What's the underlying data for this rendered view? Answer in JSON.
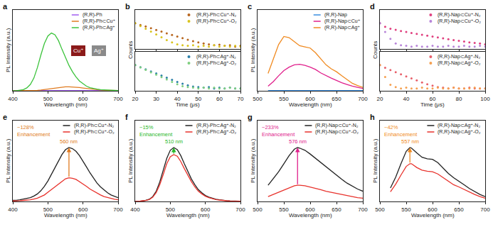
{
  "chart_data": [
    {
      "type": "line",
      "title": "a",
      "x_label": "Wavelength (nm)",
      "y_label": "PL Intensity (a.u.)",
      "xlim": [
        400,
        700
      ],
      "xticks": [
        400,
        500,
        600,
        700
      ],
      "ylim": [
        0,
        1.4
      ],
      "tick_labels": "x",
      "legend": "upper right",
      "x": [
        400,
        410,
        420,
        430,
        440,
        450,
        460,
        470,
        480,
        490,
        500,
        510,
        520,
        530,
        540,
        550,
        560,
        570,
        580,
        590,
        600,
        610,
        620,
        630,
        640,
        650,
        660,
        670,
        680,
        690,
        700
      ],
      "series": [
        {
          "name": "(R,R)-Ph",
          "color": "#a15cf0",
          "values": [
            0.003,
            0.003,
            0.003,
            0.003,
            0.003,
            0.003,
            0.003,
            0.003,
            0.003,
            0.003,
            0.003,
            0.003,
            0.003,
            0.003,
            0.003,
            0.003,
            0.003,
            0.003,
            0.003,
            0.003,
            0.003,
            0.003,
            0.003,
            0.003,
            0.003,
            0.003,
            0.003,
            0.003,
            0.003,
            0.003,
            0.003
          ]
        },
        {
          "name": "(R,R)-Ph⊂Cu⁺",
          "color": "#e07b20",
          "values": [
            0,
            0,
            0,
            0.001,
            0.001,
            0.002,
            0.004,
            0.008,
            0.014,
            0.022,
            0.03,
            0.04,
            0.05,
            0.058,
            0.065,
            0.069,
            0.07,
            0.068,
            0.063,
            0.056,
            0.048,
            0.04,
            0.032,
            0.025,
            0.019,
            0.014,
            0.01,
            0.007,
            0.005,
            0.004,
            0.003
          ]
        },
        {
          "name": "(R,R)-Ph⊂Ag⁺",
          "color": "#3cc33c",
          "values": [
            0,
            0,
            0.01,
            0.02,
            0.05,
            0.11,
            0.22,
            0.4,
            0.62,
            0.82,
            0.95,
            1.0,
            0.97,
            0.87,
            0.72,
            0.57,
            0.44,
            0.33,
            0.24,
            0.17,
            0.12,
            0.08,
            0.055,
            0.04,
            0.03,
            0.02,
            0.015,
            0.01,
            0.008,
            0.005,
            0.004
          ]
        }
      ],
      "annotations": [
        {
          "text": "Cu⁺",
          "color": "#8b1a1a"
        },
        {
          "text": "Ag⁺",
          "color": "#8a8a8a"
        }
      ]
    },
    {
      "type": "scatter",
      "title": "b",
      "x_label": "Time (μs)",
      "y_label": "Counts",
      "log": "y",
      "marker": "circle",
      "xlim": [
        20,
        70
      ],
      "xticks": [
        20,
        30,
        40,
        50,
        60,
        70
      ],
      "ylim": [
        1,
        100000
      ],
      "legend": "upper right",
      "x": [
        20,
        22.5,
        25,
        27.5,
        30,
        32.5,
        35,
        37.5,
        40,
        42.5,
        45,
        47.5,
        50,
        52.5,
        55,
        57.5,
        60,
        62.5,
        65,
        67.5,
        70
      ],
      "panels": [
        {
          "tick_labels": false,
          "series": [
            {
              "name": "(R,R)-Ph⊂Cu⁺-N₂",
              "color": "#b8661e",
              "values": [
                2000,
                1200,
                750,
                450,
                270,
                165,
                100,
                62,
                38,
                24,
                15,
                10,
                7,
                5,
                4,
                3,
                3.5,
                2.5,
                3,
                2,
                2.5
              ]
            },
            {
              "name": "(R,R)-Ph⊂Cu⁺-O₂",
              "color": "#d9c41e",
              "values": [
                2000,
                870,
                380,
                165,
                72,
                32,
                14,
                7,
                4,
                3,
                2.5,
                3,
                2,
                2.5,
                2,
                3,
                2,
                2.5,
                2,
                2.5,
                2
              ]
            }
          ]
        },
        {
          "tick_labels": "x",
          "series": [
            {
              "name": "(R,R)-Ph⊂Ag⁺-N₂",
              "color": "#2a7fa8",
              "values": [
                2000,
                1070,
                570,
                305,
                165,
                88,
                47,
                26,
                14,
                8,
                5,
                3.5,
                3,
                2.5,
                3,
                2,
                2.5,
                2,
                2.5,
                2,
                2
              ]
            },
            {
              "name": "(R,R)-Ph⊂Ag⁺-O₂",
              "color": "#7fcf7f",
              "values": [
                2000,
                980,
                480,
                235,
                115,
                56,
                28,
                14,
                7,
                4,
                3,
                2.5,
                2,
                2.5,
                2,
                2.5,
                2,
                2,
                2.5,
                2,
                2
              ]
            }
          ]
        }
      ]
    },
    {
      "type": "line",
      "title": "c",
      "x_label": "Wavelength (nm)",
      "y_label": "PL Intensity (a.u.)",
      "xlim": [
        500,
        700
      ],
      "xticks": [
        500,
        550,
        600,
        650,
        700
      ],
      "ylim": [
        0,
        1.4
      ],
      "tick_labels": "x",
      "legend": "upper right",
      "x": [
        520,
        530,
        540,
        550,
        560,
        570,
        580,
        590,
        600,
        610,
        620,
        630,
        640,
        650,
        660,
        670,
        680,
        690,
        700
      ],
      "series": [
        {
          "name": "(R,R)-Nap",
          "color": "#3a8ee0",
          "values": [
            0.003,
            0.003,
            0.003,
            0.003,
            0.003,
            0.003,
            0.003,
            0.003,
            0.003,
            0.003,
            0.003,
            0.003,
            0.003,
            0.003,
            0.003,
            0.003,
            0.003,
            0.003,
            0.003
          ]
        },
        {
          "name": "(R,R)-Nap⊂Cu⁺",
          "color": "#e0208c",
          "values": [
            0.08,
            0.16,
            0.26,
            0.35,
            0.41,
            0.45,
            0.46,
            0.44,
            0.41,
            0.37,
            0.31,
            0.26,
            0.22,
            0.18,
            0.14,
            0.11,
            0.08,
            0.06,
            0.04
          ]
        },
        {
          "name": "(R,R)-Nap⊂Ag⁺",
          "color": "#f08a20",
          "values": [
            0.3,
            0.55,
            0.8,
            0.94,
            0.92,
            0.85,
            0.78,
            0.76,
            0.74,
            0.66,
            0.55,
            0.45,
            0.38,
            0.33,
            0.26,
            0.19,
            0.13,
            0.09,
            0.06
          ]
        }
      ]
    },
    {
      "type": "scatter",
      "title": "d",
      "x_label": "Time (μs)",
      "y_label": "Counts",
      "log": "y",
      "marker": "circle",
      "xlim": [
        20,
        100
      ],
      "xticks": [
        20,
        40,
        60,
        80,
        100
      ],
      "ylim": [
        1,
        100000
      ],
      "legend": "upper right",
      "x": [
        20,
        24,
        28,
        32,
        36,
        40,
        44,
        48,
        52,
        56,
        60,
        64,
        68,
        72,
        76,
        80,
        84,
        88,
        92,
        96,
        100
      ],
      "panels": [
        {
          "tick_labels": false,
          "series": [
            {
              "name": "(R,R)-Nap⊂Cu⁺-N₂",
              "color": "#e0407f",
              "values": [
                2000,
                700,
                400,
                280,
                200,
                150,
                110,
                85,
                65,
                50,
                38,
                30,
                23,
                18,
                14,
                11,
                9,
                7,
                6,
                5,
                4
              ]
            },
            {
              "name": "(R,R)-Nap⊂Cu⁺-O₂",
              "color": "#b784d8",
              "values": [
                2000,
                150,
                20,
                5,
                3,
                2.5,
                2,
                2.5,
                2,
                2,
                2.5,
                2,
                2,
                2.5,
                2,
                2,
                2.5,
                2,
                2,
                2.5,
                2
              ]
            }
          ]
        },
        {
          "tick_labels": "x",
          "series": [
            {
              "name": "(R,R)-Nap⊂Ag⁺-N₂",
              "color": "#e8606a",
              "values": [
                2000,
                900,
                450,
                240,
                130,
                70,
                40,
                22,
                12,
                7,
                4.5,
                3,
                2.5,
                2,
                2.5,
                2,
                2,
                2.5,
                2,
                2,
                2
              ]
            },
            {
              "name": "(R,R)-Nap⊂Ag⁺-O₂",
              "color": "#f5a050",
              "values": [
                2000,
                60,
                6,
                3,
                2,
                2.5,
                2,
                2,
                2.5,
                2,
                2,
                2.5,
                2,
                2,
                2.5,
                2,
                2,
                2,
                2.5,
                2,
                2
              ]
            }
          ]
        }
      ]
    },
    {
      "type": "line",
      "title": "e",
      "x_label": "Wavelength (nm)",
      "y_label": "PL Intensity (a.u.)",
      "xlim": [
        400,
        700
      ],
      "xticks": [
        400,
        500,
        600,
        700
      ],
      "ylim": [
        0,
        1.5
      ],
      "tick_labels": "x",
      "legend": "upper right",
      "x": [
        400,
        410,
        420,
        430,
        440,
        450,
        460,
        470,
        480,
        490,
        500,
        510,
        520,
        530,
        540,
        550,
        560,
        570,
        580,
        590,
        600,
        610,
        620,
        630,
        640,
        650,
        660,
        670,
        680,
        690,
        700
      ],
      "series": [
        {
          "name": "(R,R)-Ph⊂Cu⁺-N₂",
          "color": "#222222",
          "values": [
            0.02,
            0.02,
            0.03,
            0.04,
            0.05,
            0.07,
            0.1,
            0.14,
            0.2,
            0.28,
            0.38,
            0.5,
            0.62,
            0.75,
            0.87,
            0.96,
            1.0,
            0.98,
            0.93,
            0.85,
            0.75,
            0.64,
            0.53,
            0.43,
            0.34,
            0.27,
            0.21,
            0.16,
            0.12,
            0.09,
            0.07
          ]
        },
        {
          "name": "(R,R)-Ph⊂Cu⁺-O₂",
          "color": "#e8322c",
          "values": [
            0.01,
            0.01,
            0.015,
            0.02,
            0.025,
            0.03,
            0.045,
            0.06,
            0.09,
            0.12,
            0.17,
            0.22,
            0.27,
            0.33,
            0.38,
            0.42,
            0.44,
            0.43,
            0.41,
            0.37,
            0.33,
            0.28,
            0.23,
            0.19,
            0.15,
            0.12,
            0.09,
            0.07,
            0.05,
            0.04,
            0.03
          ]
        }
      ],
      "annotations": [
        {
          "text": "560 nm",
          "color": "#e07b20"
        },
        {
          "text": "~128%\nEnhancement",
          "color": "#e07b20"
        }
      ]
    },
    {
      "type": "line",
      "title": "f",
      "x_label": "Wavelength (nm)",
      "y_label": "PL Intensity (a.u.)",
      "xlim": [
        400,
        700
      ],
      "xticks": [
        400,
        500,
        600,
        700
      ],
      "ylim": [
        0,
        1.5
      ],
      "tick_labels": "x",
      "legend": "upper right",
      "x": [
        400,
        410,
        420,
        430,
        440,
        450,
        460,
        470,
        480,
        490,
        500,
        510,
        520,
        530,
        540,
        550,
        560,
        570,
        580,
        590,
        600,
        610,
        620,
        630,
        640,
        650,
        660,
        670,
        680,
        690,
        700
      ],
      "series": [
        {
          "name": "(R,R)-Ph⊂Ag⁺-N₂",
          "color": "#222222",
          "values": [
            0,
            0,
            0.01,
            0.02,
            0.04,
            0.09,
            0.19,
            0.36,
            0.58,
            0.8,
            0.95,
            1.0,
            0.96,
            0.85,
            0.7,
            0.55,
            0.42,
            0.31,
            0.22,
            0.16,
            0.11,
            0.08,
            0.055,
            0.04,
            0.03,
            0.02,
            0.015,
            0.01,
            0.008,
            0.005,
            0.004
          ]
        },
        {
          "name": "(R,R)-Ph⊂Ag⁺-O₂",
          "color": "#e8322c",
          "values": [
            0,
            0,
            0.01,
            0.017,
            0.035,
            0.078,
            0.165,
            0.31,
            0.5,
            0.7,
            0.83,
            0.87,
            0.84,
            0.74,
            0.61,
            0.48,
            0.37,
            0.27,
            0.19,
            0.14,
            0.096,
            0.07,
            0.048,
            0.035,
            0.026,
            0.017,
            0.013,
            0.009,
            0.007,
            0.004,
            0.003
          ]
        }
      ],
      "annotations": [
        {
          "text": "510 nm",
          "color": "#28b828"
        },
        {
          "text": "~15%\nEnhancement",
          "color": "#28b828"
        }
      ]
    },
    {
      "type": "line",
      "title": "g",
      "x_label": "Wavelength (nm)",
      "y_label": "PL Intensity (a.u.)",
      "xlim": [
        500,
        700
      ],
      "xticks": [
        500,
        550,
        600,
        650,
        700
      ],
      "ylim": [
        0,
        1.5
      ],
      "tick_labels": "x",
      "legend": "upper right",
      "x": [
        520,
        530,
        540,
        550,
        560,
        570,
        576,
        580,
        590,
        600,
        610,
        620,
        630,
        640,
        650,
        660,
        670,
        680,
        690,
        700
      ],
      "series": [
        {
          "name": "(R,R)-Nap⊂Cu⁺-N₂",
          "color": "#222222",
          "values": [
            0.3,
            0.42,
            0.55,
            0.7,
            0.85,
            0.97,
            1.0,
            0.99,
            0.95,
            0.88,
            0.8,
            0.72,
            0.64,
            0.56,
            0.49,
            0.41,
            0.34,
            0.28,
            0.23,
            0.19
          ]
        },
        {
          "name": "(R,R)-Nap⊂Cu⁺-O₂",
          "color": "#e8322c",
          "values": [
            0.09,
            0.13,
            0.17,
            0.21,
            0.26,
            0.29,
            0.3,
            0.3,
            0.29,
            0.27,
            0.245,
            0.22,
            0.19,
            0.17,
            0.15,
            0.125,
            0.1,
            0.085,
            0.07,
            0.06
          ]
        }
      ],
      "annotations": [
        {
          "text": "576 nm",
          "color": "#e0208c"
        },
        {
          "text": "~233%\nEnhancement",
          "color": "#e0208c"
        }
      ]
    },
    {
      "type": "line",
      "title": "h",
      "x_label": "Wavelength (nm)",
      "y_label": "PL Intensity (a.u.)",
      "xlim": [
        500,
        700
      ],
      "xticks": [
        500,
        550,
        600,
        650,
        700
      ],
      "ylim": [
        0,
        1.5
      ],
      "tick_labels": "x",
      "legend": "upper right",
      "x": [
        520,
        530,
        540,
        550,
        557,
        560,
        570,
        580,
        590,
        600,
        610,
        620,
        630,
        640,
        650,
        660,
        670,
        680,
        690,
        700
      ],
      "series": [
        {
          "name": "(R,R)-Nap⊂Ag⁺-N₂",
          "color": "#222222",
          "values": [
            0.25,
            0.45,
            0.7,
            0.93,
            1.0,
            0.99,
            0.9,
            0.82,
            0.79,
            0.78,
            0.72,
            0.62,
            0.52,
            0.44,
            0.38,
            0.31,
            0.24,
            0.18,
            0.13,
            0.09
          ]
        },
        {
          "name": "(R,R)-Nap⊂Ag⁺-O₂",
          "color": "#e8322c",
          "values": [
            0.18,
            0.32,
            0.49,
            0.65,
            0.7,
            0.7,
            0.63,
            0.58,
            0.56,
            0.55,
            0.51,
            0.44,
            0.37,
            0.31,
            0.27,
            0.22,
            0.17,
            0.13,
            0.09,
            0.06
          ]
        }
      ],
      "annotations": [
        {
          "text": "557 nm",
          "color": "#f08a20"
        },
        {
          "text": "~42%\nEnhancement",
          "color": "#f08a20"
        }
      ]
    }
  ]
}
